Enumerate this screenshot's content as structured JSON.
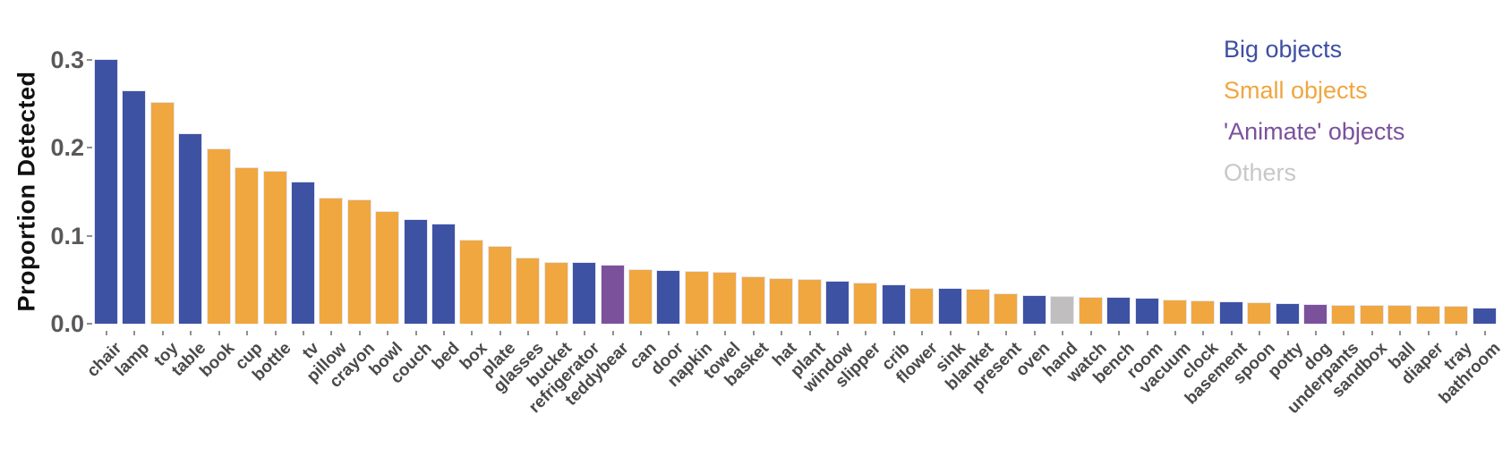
{
  "chart_data": {
    "type": "bar",
    "title": "",
    "xlabel": "",
    "ylabel": "Proportion Detected",
    "ylim": [
      0,
      0.315
    ],
    "yticks": [
      0,
      0.1,
      0.2,
      0.3
    ],
    "yticklabels": [
      "0.0",
      "0.1",
      "0.2",
      "0.3"
    ],
    "grid": false,
    "legend_position": "top-right",
    "group_colors": {
      "big": "#3E52A4",
      "small": "#F0A73F",
      "animate": "#7B519C",
      "others": "#C0BEBF"
    },
    "legend": [
      {
        "key": "big",
        "label": "Big objects",
        "color": "#3D4FA2"
      },
      {
        "key": "small",
        "label": "Small objects",
        "color": "#F0A640"
      },
      {
        "key": "animate",
        "label": "'Animate' objects",
        "color": "#7B519C"
      },
      {
        "key": "others",
        "label": "Others",
        "color": "#C9C7C8"
      }
    ],
    "bars": [
      {
        "label": "chair",
        "value": 0.301,
        "group": "big"
      },
      {
        "label": "lamp",
        "value": 0.266,
        "group": "big"
      },
      {
        "label": "toy",
        "value": 0.252,
        "group": "small"
      },
      {
        "label": "table",
        "value": 0.217,
        "group": "big"
      },
      {
        "label": "book",
        "value": 0.199,
        "group": "small"
      },
      {
        "label": "cup",
        "value": 0.178,
        "group": "small"
      },
      {
        "label": "bottle",
        "value": 0.174,
        "group": "small"
      },
      {
        "label": "tv",
        "value": 0.162,
        "group": "big"
      },
      {
        "label": "pillow",
        "value": 0.143,
        "group": "small"
      },
      {
        "label": "crayon",
        "value": 0.141,
        "group": "small"
      },
      {
        "label": "bowl",
        "value": 0.128,
        "group": "small"
      },
      {
        "label": "couch",
        "value": 0.119,
        "group": "big"
      },
      {
        "label": "bed",
        "value": 0.114,
        "group": "big"
      },
      {
        "label": "box",
        "value": 0.096,
        "group": "small"
      },
      {
        "label": "plate",
        "value": 0.089,
        "group": "small"
      },
      {
        "label": "glasses",
        "value": 0.075,
        "group": "small"
      },
      {
        "label": "bucket",
        "value": 0.07,
        "group": "small"
      },
      {
        "label": "refrigerator",
        "value": 0.07,
        "group": "big"
      },
      {
        "label": "teddybear",
        "value": 0.067,
        "group": "animate"
      },
      {
        "label": "can",
        "value": 0.062,
        "group": "small"
      },
      {
        "label": "door",
        "value": 0.061,
        "group": "big"
      },
      {
        "label": "napkin",
        "value": 0.06,
        "group": "small"
      },
      {
        "label": "towel",
        "value": 0.059,
        "group": "small"
      },
      {
        "label": "basket",
        "value": 0.054,
        "group": "small"
      },
      {
        "label": "hat",
        "value": 0.052,
        "group": "small"
      },
      {
        "label": "plant",
        "value": 0.051,
        "group": "small"
      },
      {
        "label": "window",
        "value": 0.049,
        "group": "big"
      },
      {
        "label": "slipper",
        "value": 0.047,
        "group": "small"
      },
      {
        "label": "crib",
        "value": 0.045,
        "group": "big"
      },
      {
        "label": "flower",
        "value": 0.041,
        "group": "small"
      },
      {
        "label": "sink",
        "value": 0.041,
        "group": "big"
      },
      {
        "label": "blanket",
        "value": 0.04,
        "group": "small"
      },
      {
        "label": "present",
        "value": 0.035,
        "group": "small"
      },
      {
        "label": "oven",
        "value": 0.033,
        "group": "big"
      },
      {
        "label": "hand",
        "value": 0.032,
        "group": "others"
      },
      {
        "label": "watch",
        "value": 0.031,
        "group": "small"
      },
      {
        "label": "bench",
        "value": 0.031,
        "group": "big"
      },
      {
        "label": "room",
        "value": 0.03,
        "group": "big"
      },
      {
        "label": "vacuum",
        "value": 0.027,
        "group": "small"
      },
      {
        "label": "clock",
        "value": 0.026,
        "group": "small"
      },
      {
        "label": "basement",
        "value": 0.025,
        "group": "big"
      },
      {
        "label": "spoon",
        "value": 0.024,
        "group": "small"
      },
      {
        "label": "potty",
        "value": 0.023,
        "group": "big"
      },
      {
        "label": "dog",
        "value": 0.022,
        "group": "animate"
      },
      {
        "label": "underpants",
        "value": 0.021,
        "group": "small"
      },
      {
        "label": "sandbox",
        "value": 0.021,
        "group": "small"
      },
      {
        "label": "ball",
        "value": 0.021,
        "group": "small"
      },
      {
        "label": "diaper",
        "value": 0.02,
        "group": "small"
      },
      {
        "label": "tray",
        "value": 0.02,
        "group": "small"
      },
      {
        "label": "bathroom",
        "value": 0.018,
        "group": "big"
      }
    ]
  }
}
